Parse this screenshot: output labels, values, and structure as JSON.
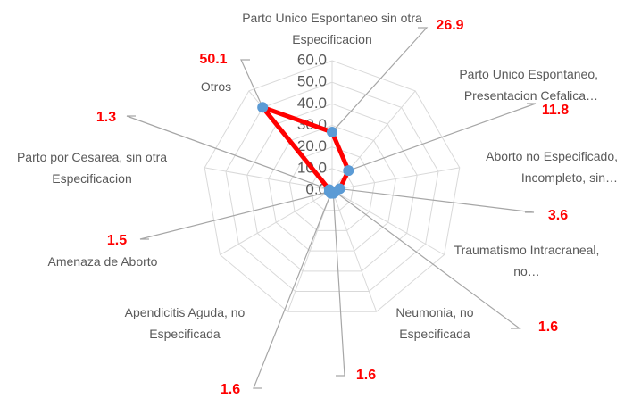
{
  "chart_data": {
    "type": "radar",
    "categories": [
      "Parto Unico Espontaneo sin otra Especificacion",
      "Parto Unico Espontaneo, Presentacion Cefalica…",
      "Aborto no Especificado, Incompleto, sin…",
      "Traumatismo Intracraneal, no…",
      "Neumonia, no Especificada",
      "Apendicitis Aguda, no Especificada",
      "Amenaza de Aborto",
      "Parto por Cesarea, sin otra Especificacion",
      "Otros"
    ],
    "values": [
      26.9,
      11.8,
      3.6,
      1.6,
      1.6,
      1.6,
      1.5,
      1.3,
      50.1
    ],
    "color": "#ff0000",
    "marker_color": "#5b9bd5",
    "label_color": "#ff0000",
    "ylim": [
      0,
      60
    ],
    "yticks": [
      {
        "value": 0,
        "label": "0.0"
      },
      {
        "value": 10,
        "label": "10.0"
      },
      {
        "value": 20,
        "label": "20.0"
      },
      {
        "value": 30,
        "label": "30.0"
      },
      {
        "value": 40,
        "label": "40.0"
      },
      {
        "value": 50,
        "label": "50.0"
      },
      {
        "value": 60,
        "label": "60.0"
      }
    ],
    "grid": true
  }
}
